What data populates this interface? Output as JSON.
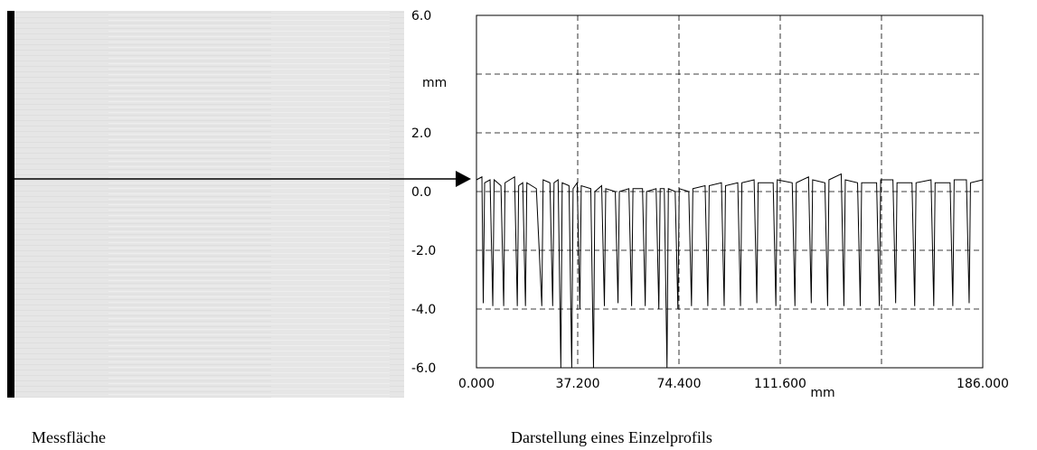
{
  "chart_data": {
    "type": "line",
    "x_label": "mm",
    "y_label": "mm",
    "xlim": [
      0,
      186
    ],
    "ylim": [
      -6,
      6
    ],
    "xticks": [
      {
        "value": 0,
        "label": "0.000"
      },
      {
        "value": 37.2,
        "label": "37.200"
      },
      {
        "value": 74.4,
        "label": "74.400"
      },
      {
        "value": 111.6,
        "label": "111.600"
      },
      {
        "value": 148.8,
        "label": null
      },
      {
        "value": 186,
        "label": "186.000"
      }
    ],
    "yticks": [
      {
        "value": 6,
        "label": "6.0"
      },
      {
        "value": 4,
        "label": null
      },
      {
        "value": 2,
        "label": "2.0"
      },
      {
        "value": 0,
        "label": "0.0"
      },
      {
        "value": -2,
        "label": "-2.0"
      },
      {
        "value": -4,
        "label": "-4.0"
      },
      {
        "value": -6,
        "label": "-6.0"
      }
    ],
    "grid": true,
    "x": [
      0,
      2,
      2.5,
      3,
      5,
      6,
      6.5,
      9,
      10,
      10.5,
      14,
      15,
      15.5,
      17,
      18,
      18.5,
      22,
      24,
      24.5,
      27,
      28,
      28.5,
      30,
      31,
      31.5,
      34,
      35,
      35.5,
      37,
      38,
      38.5,
      42,
      43,
      43.5,
      46,
      47,
      47.5,
      51,
      52,
      52.5,
      56,
      57,
      57.5,
      61,
      62,
      62.5,
      66,
      67,
      67.5,
      69,
      70,
      70.5,
      73,
      74,
      74.5,
      78,
      79,
      79.5,
      84,
      85,
      85.5,
      90,
      91,
      91.5,
      96,
      97,
      97.5,
      102,
      103,
      103.5,
      109,
      110,
      110.5,
      116,
      117,
      117.5,
      122,
      123,
      123.5,
      128,
      129,
      129.5,
      134,
      135,
      135.5,
      140,
      141,
      141.5,
      147,
      148,
      148.5,
      153,
      154,
      154.5,
      160,
      161,
      161.5,
      167,
      168,
      168.5,
      174,
      175,
      175.5,
      180,
      181,
      181.5,
      186
    ],
    "series": [
      {
        "color": "#000000",
        "values": [
          0.4,
          0.5,
          -3.8,
          0.3,
          0.4,
          -3.9,
          0.4,
          0.2,
          -3.9,
          0.3,
          0.5,
          -3.9,
          0.2,
          0.3,
          -3.9,
          0.3,
          0.1,
          -3.9,
          0.4,
          0.3,
          -3.9,
          0.3,
          0.4,
          -6.0,
          0.3,
          0.2,
          -6.0,
          0.1,
          0.3,
          -4.0,
          0.2,
          0.1,
          -6.0,
          0.0,
          0.2,
          -3.9,
          0.1,
          0.0,
          -3.8,
          0.0,
          0.1,
          -3.9,
          0.1,
          0.1,
          -3.9,
          0.0,
          0.1,
          -4.0,
          0.1,
          0.1,
          -6.0,
          0.1,
          0.0,
          -4.0,
          0.1,
          0.0,
          -3.9,
          0.1,
          0.2,
          -3.9,
          0.2,
          0.3,
          -3.9,
          0.2,
          0.3,
          -3.9,
          0.3,
          0.4,
          -3.8,
          0.3,
          0.3,
          -3.9,
          0.4,
          0.3,
          -3.9,
          0.3,
          0.5,
          -3.8,
          0.4,
          0.3,
          -3.9,
          0.4,
          0.6,
          -3.9,
          0.4,
          0.3,
          -3.9,
          0.3,
          0.3,
          -3.9,
          0.4,
          0.4,
          -3.8,
          0.3,
          0.3,
          -3.9,
          0.3,
          0.4,
          -3.9,
          0.3,
          0.3,
          -3.9,
          0.4,
          0.4,
          -3.8,
          0.3,
          0.4
        ]
      }
    ]
  },
  "captions": {
    "left": "Messfläche",
    "right": "Darstellung eines Einzelprofils"
  }
}
